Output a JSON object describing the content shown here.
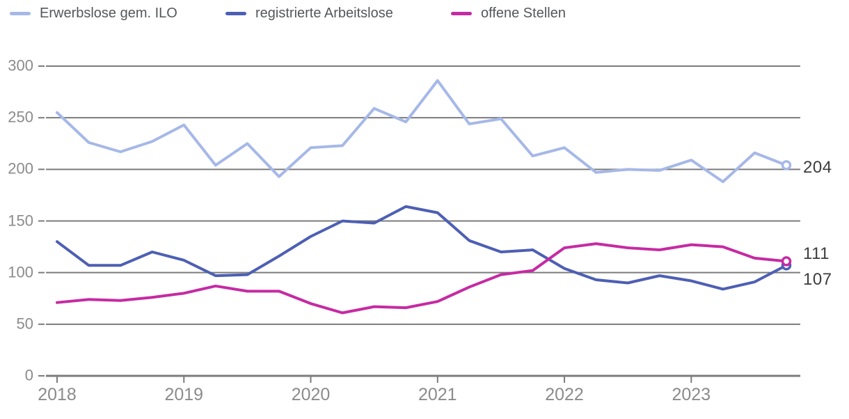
{
  "legend": {
    "items": [
      {
        "label": "Erwerbslose gem. ILO",
        "color": "#a6b8e8"
      },
      {
        "label": "registrierte Arbeitslose",
        "color": "#4d5fb4"
      },
      {
        "label": "offene Stellen",
        "color": "#c62aa3"
      }
    ]
  },
  "end_labels": [
    {
      "text": "204"
    },
    {
      "text": "111"
    },
    {
      "text": "107"
    }
  ],
  "axes": {
    "y_tick_labels": [
      "0",
      "50",
      "100",
      "150",
      "200",
      "250",
      "300"
    ],
    "x_tick_labels": [
      "2018",
      "2019",
      "2020",
      "2021",
      "2022",
      "2023"
    ]
  },
  "colors": {
    "grid": "#7c7c7c",
    "axis_text": "#8b8b8b",
    "legend_text": "#54575a",
    "end_label_text": "#3d3d3d",
    "background": "#ffffff"
  },
  "chart_data": {
    "type": "line",
    "x_unit": "quarterly",
    "x": [
      "2018 Q1",
      "2018 Q2",
      "2018 Q3",
      "2018 Q4",
      "2019 Q1",
      "2019 Q2",
      "2019 Q3",
      "2019 Q4",
      "2020 Q1",
      "2020 Q2",
      "2020 Q3",
      "2020 Q4",
      "2021 Q1",
      "2021 Q2",
      "2021 Q3",
      "2021 Q4",
      "2022 Q1",
      "2022 Q2",
      "2022 Q3",
      "2022 Q4",
      "2023 Q1",
      "2023 Q2",
      "2023 Q3",
      "2023 Q4"
    ],
    "series": [
      {
        "name": "Erwerbslose gem. ILO",
        "color": "#a6b8e8",
        "end_value": 204,
        "values": [
          255,
          226,
          217,
          227,
          243,
          204,
          225,
          193,
          221,
          223,
          259,
          246,
          286,
          244,
          249,
          213,
          221,
          197,
          200,
          199,
          209,
          188,
          216,
          204
        ]
      },
      {
        "name": "registrierte Arbeitslose",
        "color": "#4d5fb4",
        "end_value": 107,
        "values": [
          130,
          107,
          107,
          120,
          112,
          97,
          98,
          116,
          135,
          150,
          148,
          164,
          158,
          131,
          120,
          122,
          104,
          93,
          90,
          97,
          92,
          84,
          91,
          107
        ]
      },
      {
        "name": "offene Stellen",
        "color": "#c62aa3",
        "end_value": 111,
        "values": [
          71,
          74,
          73,
          76,
          80,
          87,
          82,
          82,
          70,
          61,
          67,
          66,
          72,
          86,
          98,
          102,
          124,
          128,
          124,
          122,
          127,
          125,
          114,
          111
        ]
      }
    ],
    "y_ticks": [
      0,
      50,
      100,
      150,
      200,
      250,
      300
    ],
    "ylim": [
      0,
      300
    ],
    "grid": "horizontal",
    "legend_position": "top",
    "title": "",
    "xlabel": "",
    "ylabel": ""
  }
}
